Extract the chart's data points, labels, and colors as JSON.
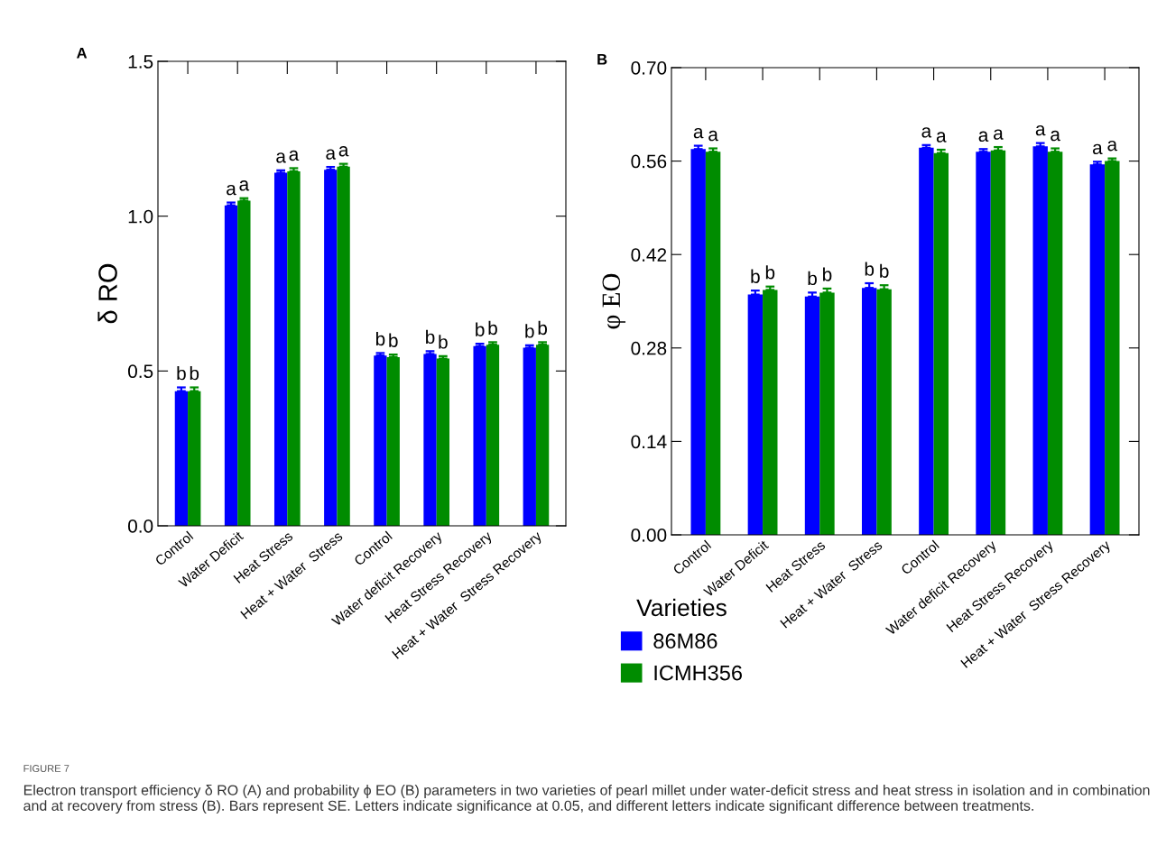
{
  "chart_data": [
    {
      "type": "bar",
      "ylabel": "δ RO",
      "categories": [
        "Control",
        "Water Deficit",
        "Heat Stress",
        "Heat + Water  Stress",
        "Control",
        "Water deficit Recovery",
        "Heat Stress Recovery",
        "Heat + Water  Stress Recovery"
      ],
      "series": [
        {
          "name": "86M86",
          "color": "#0000ff",
          "values": [
            0.435,
            1.035,
            1.14,
            1.15,
            0.55,
            0.555,
            0.58,
            0.575
          ],
          "errors": [
            0.012,
            0.009,
            0.008,
            0.009,
            0.008,
            0.009,
            0.008,
            0.008
          ],
          "value_labels": [
            "b",
            "a",
            "a",
            "a",
            "b",
            "b",
            "b",
            "b"
          ]
        },
        {
          "name": "ICMH356",
          "color": "#008c00",
          "values": [
            0.435,
            1.05,
            1.145,
            1.16,
            0.545,
            0.54,
            0.585,
            0.585
          ],
          "errors": [
            0.012,
            0.008,
            0.01,
            0.009,
            0.008,
            0.008,
            0.008,
            0.008
          ],
          "value_labels": [
            "b",
            "a",
            "a",
            "a",
            "b",
            "b",
            "b",
            "b"
          ]
        }
      ],
      "ylim": [
        0,
        1.5
      ],
      "yticks": [
        {
          "value": 0,
          "label": "0.0"
        },
        0.5,
        {
          "value": 1,
          "label": "1.0"
        },
        1.5
      ],
      "legend": "bottom right",
      "legend_title": "Varieties",
      "grid": false,
      "annotations": [
        "A",
        "FIGURE 7",
        "Electron transport efficiency δ RO (A) and probability ϕ EO (B) parameters in two varieties of pearl millet under water-deficit stress and heat stress in isolation and in combination and at recovery from stress (B). Bars represent SE. Letters indicate significance at 0.05, and different letters indicate significant difference between treatments."
      ]
    },
    {
      "type": "bar",
      "ylabel": "φ EO",
      "categories": [
        "Control",
        "Water Deficit",
        "Heat Stress",
        "Heat + Water  Stress",
        "Control",
        "Water deficit Recovery",
        "Heat Stress Recovery",
        "Heat + Water  Stress Recovery"
      ],
      "series": [
        {
          "color": "#0000ff",
          "values": [
            0.578,
            0.36,
            0.357,
            0.37,
            0.58,
            0.574,
            0.582,
            0.555
          ],
          "errors": [
            0.005,
            0.006,
            0.006,
            0.007,
            0.004,
            0.004,
            0.005,
            0.004
          ],
          "value_labels": [
            "a",
            "b",
            "b",
            "b",
            "a",
            "a",
            "a",
            "a"
          ]
        },
        {
          "color": "#008c00",
          "values": [
            0.574,
            0.367,
            0.363,
            0.368,
            0.572,
            0.576,
            0.574,
            0.56
          ],
          "errors": [
            0.005,
            0.005,
            0.006,
            0.006,
            0.005,
            0.005,
            0.005,
            0.004
          ],
          "value_labels": [
            "a",
            "b",
            "b",
            "b",
            "a",
            "a",
            "a",
            "a"
          ]
        }
      ],
      "ylim": [
        0,
        0.7
      ],
      "yticks": [
        {
          "value": 0,
          "label": "0.00"
        },
        0.14,
        0.28,
        0.42,
        0.56,
        {
          "value": 0.7,
          "label": "0.70"
        }
      ],
      "grid": false,
      "annotations": [
        "B"
      ]
    }
  ]
}
